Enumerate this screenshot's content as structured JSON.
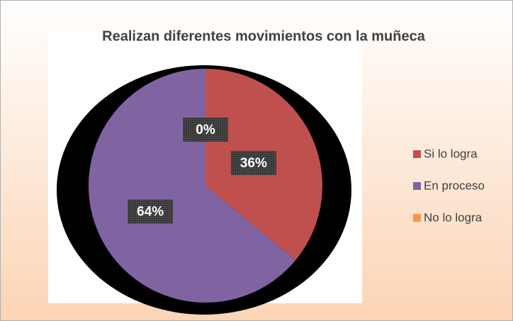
{
  "chart_data": {
    "type": "pie",
    "title": "Realizan diferentes  movimientos con la muñeca",
    "categories": [
      "Si lo logra",
      "En proceso",
      "No lo logra"
    ],
    "values": [
      36,
      64,
      0
    ],
    "value_labels": [
      "36%",
      "64%",
      "0%"
    ],
    "colors": [
      "#c0504d",
      "#8064a2",
      "#f79646"
    ],
    "legend": "right"
  }
}
